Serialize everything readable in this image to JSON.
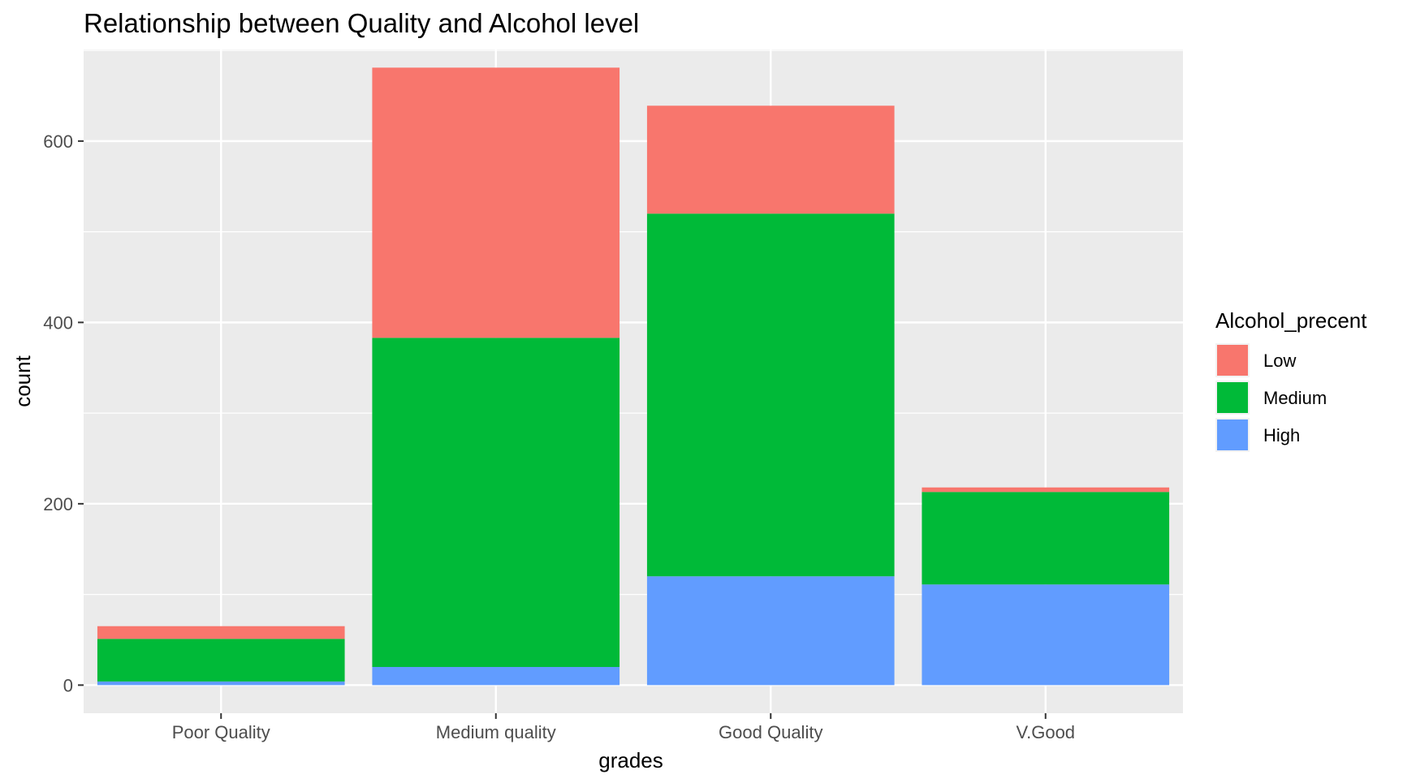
{
  "chart_data": {
    "type": "bar",
    "stacked": true,
    "title": "Relationship between Quality and Alcohol level",
    "xlabel": "grades",
    "ylabel": "count",
    "categories": [
      "Poor Quality",
      "Medium quality",
      "Good Quality",
      "V.Good"
    ],
    "series": [
      {
        "name": "Low",
        "color": "#F8766D",
        "values": [
          14,
          298,
          119,
          5
        ]
      },
      {
        "name": "Medium",
        "color": "#00BA38",
        "values": [
          47,
          363,
          400,
          102
        ]
      },
      {
        "name": "High",
        "color": "#619CFF",
        "values": [
          4,
          20,
          120,
          111
        ]
      }
    ],
    "stack_order_bottom_to_top": [
      "High",
      "Medium",
      "Low"
    ],
    "ylim": [
      -31,
      701
    ],
    "yticks": [
      0,
      200,
      400,
      600
    ],
    "grid": true,
    "panel_background": "#EBEBEB",
    "gridline_color": "#FFFFFF",
    "legend": {
      "title": "Alcohol_precent",
      "position": "right",
      "items": [
        "Low",
        "Medium",
        "High"
      ]
    }
  }
}
